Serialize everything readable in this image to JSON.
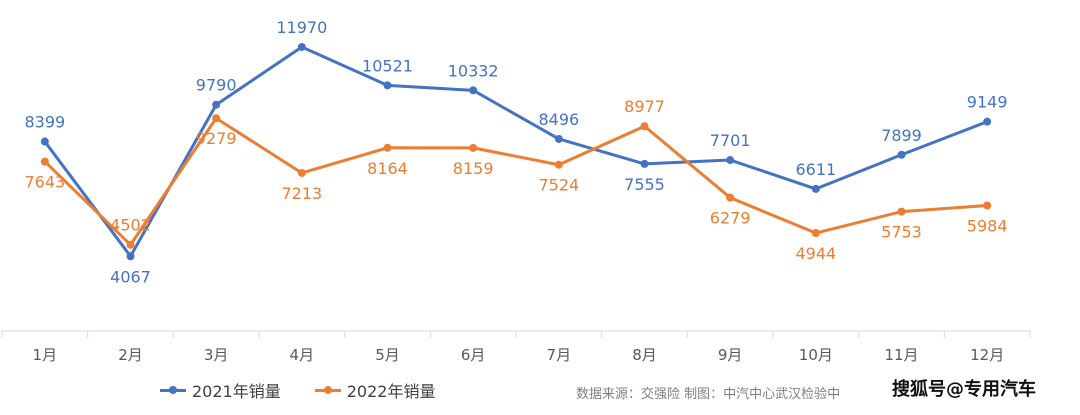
{
  "chart_data": {
    "type": "line",
    "categories": [
      "1月",
      "2月",
      "3月",
      "4月",
      "5月",
      "6月",
      "7月",
      "8月",
      "9月",
      "10月",
      "11月",
      "12月"
    ],
    "series": [
      {
        "name": "2021年销量",
        "color": "#4472c4",
        "values": [
          8399,
          4067,
          9790,
          11970,
          10521,
          10332,
          8496,
          7555,
          7701,
          6611,
          7899,
          9149
        ]
      },
      {
        "name": "2022年销量",
        "color": "#ed7d31",
        "values": [
          7643,
          4502,
          9279,
          7213,
          8164,
          8159,
          7524,
          8977,
          6279,
          4944,
          5753,
          5984
        ]
      }
    ],
    "ylim": [
      2000,
      12800
    ],
    "grid": false,
    "legend_position": "bottom-left"
  },
  "footer": {
    "source": "数据来源：交强险  制图：中汽中心武汉检验中",
    "watermark": "搜狐号@专用汽车"
  }
}
